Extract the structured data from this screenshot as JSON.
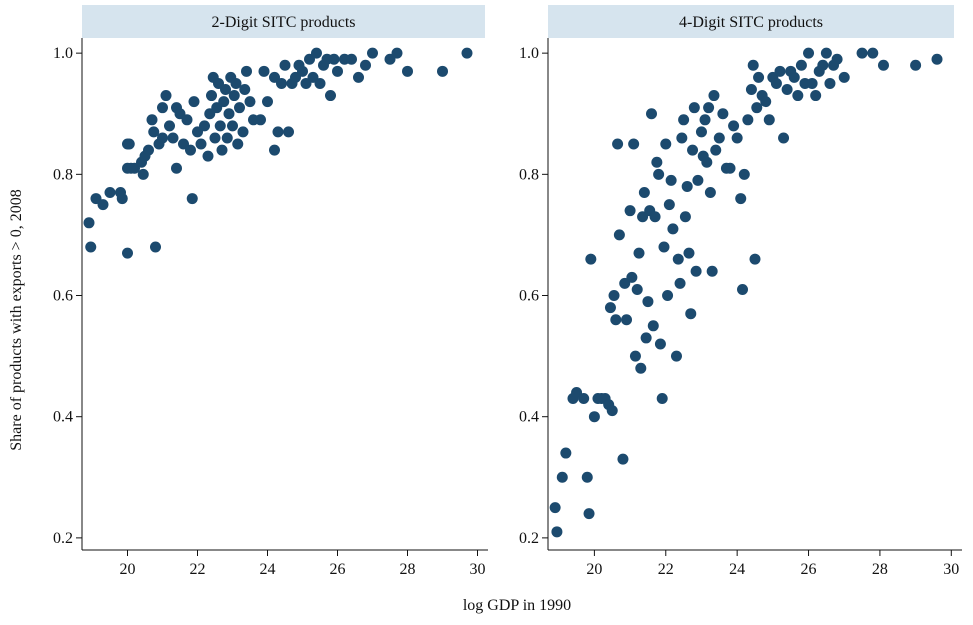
{
  "chart_data": {
    "type": "scatter",
    "xlabel": "log GDP in 1990",
    "ylabel": "Share of products with exports > 0, 2008",
    "xlim": [
      18.7,
      30.3
    ],
    "ylim": [
      0.18,
      1.025
    ],
    "xticks": [
      20,
      22,
      24,
      26,
      28,
      30
    ],
    "yticks": [
      0.2,
      0.4,
      0.6,
      0.8,
      1.0
    ],
    "ytick_labels": [
      "0.2",
      "0.4",
      "0.6",
      "0.8",
      "1.0"
    ],
    "marker_color": "#1c4a6e",
    "grid": false,
    "panels": [
      {
        "title": "2-Digit SITC products",
        "points": [
          [
            18.9,
            0.72
          ],
          [
            18.95,
            0.68
          ],
          [
            19.1,
            0.76
          ],
          [
            19.3,
            0.75
          ],
          [
            19.5,
            0.77
          ],
          [
            19.8,
            0.77
          ],
          [
            19.85,
            0.76
          ],
          [
            20.0,
            0.85
          ],
          [
            20.05,
            0.85
          ],
          [
            20.0,
            0.81
          ],
          [
            20.1,
            0.81
          ],
          [
            20.2,
            0.81
          ],
          [
            20.0,
            0.67
          ],
          [
            20.4,
            0.82
          ],
          [
            20.45,
            0.8
          ],
          [
            20.5,
            0.83
          ],
          [
            20.6,
            0.84
          ],
          [
            20.7,
            0.89
          ],
          [
            20.75,
            0.87
          ],
          [
            20.8,
            0.68
          ],
          [
            20.9,
            0.85
          ],
          [
            21.0,
            0.86
          ],
          [
            21.0,
            0.91
          ],
          [
            21.1,
            0.93
          ],
          [
            21.2,
            0.88
          ],
          [
            21.3,
            0.86
          ],
          [
            21.4,
            0.81
          ],
          [
            21.4,
            0.91
          ],
          [
            21.5,
            0.9
          ],
          [
            21.6,
            0.85
          ],
          [
            21.7,
            0.89
          ],
          [
            21.8,
            0.84
          ],
          [
            21.85,
            0.76
          ],
          [
            21.9,
            0.92
          ],
          [
            22.0,
            0.87
          ],
          [
            22.1,
            0.85
          ],
          [
            22.2,
            0.88
          ],
          [
            22.3,
            0.83
          ],
          [
            22.35,
            0.9
          ],
          [
            22.4,
            0.93
          ],
          [
            22.45,
            0.96
          ],
          [
            22.5,
            0.86
          ],
          [
            22.55,
            0.91
          ],
          [
            22.6,
            0.95
          ],
          [
            22.65,
            0.88
          ],
          [
            22.7,
            0.84
          ],
          [
            22.75,
            0.92
          ],
          [
            22.8,
            0.94
          ],
          [
            22.85,
            0.86
          ],
          [
            22.9,
            0.9
          ],
          [
            22.95,
            0.96
          ],
          [
            23.0,
            0.88
          ],
          [
            23.05,
            0.93
          ],
          [
            23.1,
            0.95
          ],
          [
            23.15,
            0.85
          ],
          [
            23.2,
            0.91
          ],
          [
            23.3,
            0.87
          ],
          [
            23.35,
            0.94
          ],
          [
            23.4,
            0.97
          ],
          [
            23.5,
            0.92
          ],
          [
            23.6,
            0.89
          ],
          [
            23.8,
            0.89
          ],
          [
            23.9,
            0.97
          ],
          [
            24.0,
            0.92
          ],
          [
            24.2,
            0.84
          ],
          [
            24.2,
            0.96
          ],
          [
            24.3,
            0.87
          ],
          [
            24.4,
            0.95
          ],
          [
            24.5,
            0.98
          ],
          [
            24.6,
            0.87
          ],
          [
            24.7,
            0.95
          ],
          [
            24.8,
            0.96
          ],
          [
            24.9,
            0.98
          ],
          [
            25.0,
            0.97
          ],
          [
            25.1,
            0.95
          ],
          [
            25.2,
            0.99
          ],
          [
            25.3,
            0.96
          ],
          [
            25.4,
            1.0
          ],
          [
            25.5,
            0.95
          ],
          [
            25.6,
            0.98
          ],
          [
            25.7,
            0.99
          ],
          [
            25.8,
            0.93
          ],
          [
            25.9,
            0.99
          ],
          [
            26.0,
            0.97
          ],
          [
            26.2,
            0.99
          ],
          [
            26.4,
            0.99
          ],
          [
            26.6,
            0.96
          ],
          [
            26.8,
            0.98
          ],
          [
            27.0,
            1.0
          ],
          [
            27.5,
            0.99
          ],
          [
            27.7,
            1.0
          ],
          [
            28.0,
            0.97
          ],
          [
            29.0,
            0.97
          ],
          [
            29.7,
            1.0
          ]
        ]
      },
      {
        "title": "4-Digit SITC products",
        "points": [
          [
            18.9,
            0.25
          ],
          [
            18.95,
            0.21
          ],
          [
            19.1,
            0.3
          ],
          [
            19.2,
            0.34
          ],
          [
            19.4,
            0.43
          ],
          [
            19.5,
            0.44
          ],
          [
            19.7,
            0.43
          ],
          [
            19.8,
            0.3
          ],
          [
            19.85,
            0.24
          ],
          [
            19.9,
            0.66
          ],
          [
            20.0,
            0.4
          ],
          [
            20.1,
            0.43
          ],
          [
            20.2,
            0.43
          ],
          [
            20.3,
            0.43
          ],
          [
            20.4,
            0.42
          ],
          [
            20.45,
            0.58
          ],
          [
            20.5,
            0.41
          ],
          [
            20.55,
            0.6
          ],
          [
            20.6,
            0.56
          ],
          [
            20.65,
            0.85
          ],
          [
            20.7,
            0.7
          ],
          [
            20.8,
            0.33
          ],
          [
            20.85,
            0.62
          ],
          [
            20.9,
            0.56
          ],
          [
            21.0,
            0.74
          ],
          [
            21.05,
            0.63
          ],
          [
            21.1,
            0.85
          ],
          [
            21.15,
            0.5
          ],
          [
            21.2,
            0.61
          ],
          [
            21.25,
            0.67
          ],
          [
            21.3,
            0.48
          ],
          [
            21.35,
            0.73
          ],
          [
            21.4,
            0.77
          ],
          [
            21.45,
            0.53
          ],
          [
            21.5,
            0.59
          ],
          [
            21.55,
            0.74
          ],
          [
            21.6,
            0.9
          ],
          [
            21.65,
            0.55
          ],
          [
            21.7,
            0.73
          ],
          [
            21.75,
            0.82
          ],
          [
            21.8,
            0.8
          ],
          [
            21.85,
            0.52
          ],
          [
            21.9,
            0.43
          ],
          [
            21.95,
            0.68
          ],
          [
            22.0,
            0.85
          ],
          [
            22.05,
            0.6
          ],
          [
            22.1,
            0.75
          ],
          [
            22.15,
            0.79
          ],
          [
            22.2,
            0.71
          ],
          [
            22.3,
            0.5
          ],
          [
            22.35,
            0.66
          ],
          [
            22.4,
            0.62
          ],
          [
            22.45,
            0.86
          ],
          [
            22.5,
            0.89
          ],
          [
            22.55,
            0.73
          ],
          [
            22.6,
            0.78
          ],
          [
            22.65,
            0.67
          ],
          [
            22.7,
            0.57
          ],
          [
            22.75,
            0.84
          ],
          [
            22.8,
            0.91
          ],
          [
            22.85,
            0.64
          ],
          [
            22.9,
            0.79
          ],
          [
            23.0,
            0.87
          ],
          [
            23.05,
            0.83
          ],
          [
            23.1,
            0.89
          ],
          [
            23.15,
            0.82
          ],
          [
            23.2,
            0.91
          ],
          [
            23.25,
            0.77
          ],
          [
            23.3,
            0.64
          ],
          [
            23.35,
            0.93
          ],
          [
            23.4,
            0.84
          ],
          [
            23.5,
            0.86
          ],
          [
            23.6,
            0.9
          ],
          [
            23.7,
            0.81
          ],
          [
            23.8,
            0.81
          ],
          [
            23.9,
            0.88
          ],
          [
            24.0,
            0.86
          ],
          [
            24.1,
            0.76
          ],
          [
            24.15,
            0.61
          ],
          [
            24.2,
            0.8
          ],
          [
            24.3,
            0.89
          ],
          [
            24.4,
            0.94
          ],
          [
            24.45,
            0.98
          ],
          [
            24.5,
            0.66
          ],
          [
            24.55,
            0.91
          ],
          [
            24.6,
            0.96
          ],
          [
            24.7,
            0.93
          ],
          [
            24.8,
            0.92
          ],
          [
            24.9,
            0.89
          ],
          [
            25.0,
            0.96
          ],
          [
            25.1,
            0.95
          ],
          [
            25.2,
            0.97
          ],
          [
            25.3,
            0.86
          ],
          [
            25.4,
            0.94
          ],
          [
            25.5,
            0.97
          ],
          [
            25.6,
            0.96
          ],
          [
            25.7,
            0.93
          ],
          [
            25.8,
            0.98
          ],
          [
            25.9,
            0.95
          ],
          [
            26.0,
            1.0
          ],
          [
            26.1,
            0.95
          ],
          [
            26.2,
            0.93
          ],
          [
            26.3,
            0.97
          ],
          [
            26.4,
            0.98
          ],
          [
            26.5,
            1.0
          ],
          [
            26.6,
            0.95
          ],
          [
            26.7,
            0.98
          ],
          [
            26.8,
            0.99
          ],
          [
            27.0,
            0.96
          ],
          [
            27.5,
            1.0
          ],
          [
            27.8,
            1.0
          ],
          [
            28.1,
            0.98
          ],
          [
            29.0,
            0.98
          ],
          [
            29.6,
            0.99
          ]
        ]
      }
    ]
  }
}
